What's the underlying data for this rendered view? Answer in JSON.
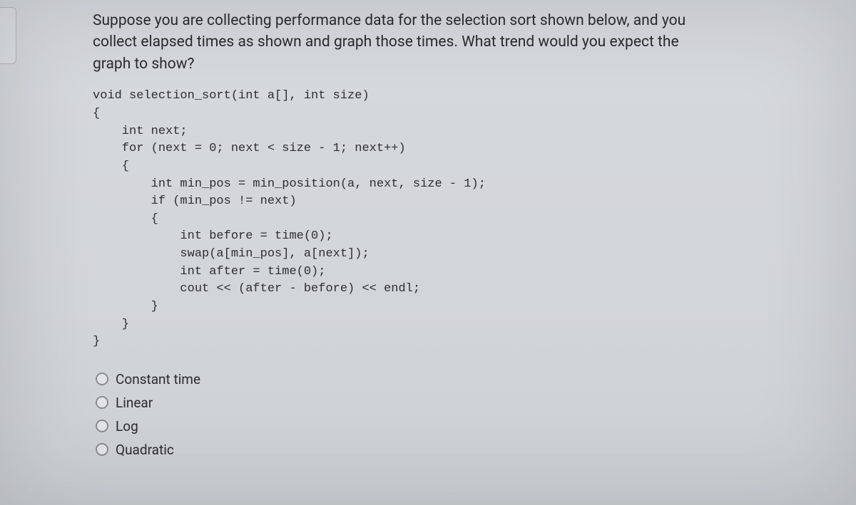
{
  "question": {
    "text": "Suppose you are collecting performance data for the selection sort shown below, and you collect elapsed times as shown and graph those times. What trend would you expect the graph to show?"
  },
  "code": {
    "lines": [
      "void selection_sort(int a[], int size)",
      "{",
      "    int next;",
      "    for (next = 0; next < size - 1; next++)",
      "    {",
      "        int min_pos = min_position(a, next, size - 1);",
      "        if (min_pos != next)",
      "        {",
      "            int before = time(0);",
      "            swap(a[min_pos], a[next]);",
      "            int after = time(0);",
      "            cout << (after - before) << endl;",
      "        }",
      "    }",
      "}"
    ]
  },
  "options": [
    {
      "label": "Constant time"
    },
    {
      "label": "Linear"
    },
    {
      "label": "Log"
    },
    {
      "label": "Quadratic"
    }
  ]
}
